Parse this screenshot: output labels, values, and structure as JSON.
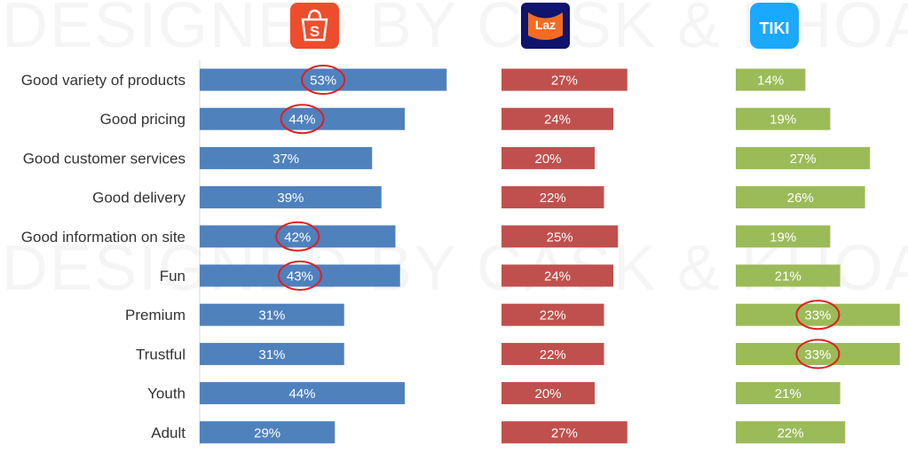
{
  "watermark": "DESIGNED BY CASK & KHOA",
  "logos": {
    "shopee": {
      "glyph": "S",
      "color": "#EE4D2D"
    },
    "lazada": {
      "glyph": "Laz",
      "color": "#0F146D",
      "accent": "#F36C21"
    },
    "tiki": {
      "glyph": "TIKI",
      "color": "#1BA8FF"
    }
  },
  "colors": {
    "shopee": "#4F81BD",
    "lazada": "#C0504D",
    "tiki": "#9BBB59",
    "highlight": "#E02020"
  },
  "chart_data": {
    "type": "bar",
    "orientation": "horizontal",
    "categories": [
      "Good variety of products",
      "Good pricing",
      "Good customer services",
      "Good delivery",
      "Good information on site",
      "Fun",
      "Premium",
      "Trustful",
      "Youth",
      "Adult"
    ],
    "series": [
      {
        "key": "shopee",
        "values": [
          53,
          44,
          37,
          39,
          42,
          43,
          31,
          31,
          44,
          29
        ],
        "labels": [
          "53%",
          "44%",
          "37%",
          "39%",
          "42%",
          "43%",
          "31%",
          "31%",
          "44%",
          "29%"
        ],
        "highlighted": [
          true,
          true,
          false,
          false,
          true,
          true,
          false,
          false,
          false,
          false
        ]
      },
      {
        "key": "lazada",
        "values": [
          27,
          24,
          20,
          22,
          25,
          24,
          22,
          22,
          20,
          27
        ],
        "labels": [
          "27%",
          "24%",
          "20%",
          "22%",
          "25%",
          "24%",
          "22%",
          "22%",
          "20%",
          "27%"
        ],
        "highlighted": [
          false,
          false,
          false,
          false,
          false,
          false,
          false,
          false,
          false,
          false
        ]
      },
      {
        "key": "tiki",
        "values": [
          14,
          19,
          27,
          26,
          19,
          21,
          33,
          33,
          21,
          22
        ],
        "labels": [
          "14%",
          "19%",
          "27%",
          "26%",
          "19%",
          "21%",
          "33%",
          "33%",
          "21%",
          "22%"
        ],
        "highlighted": [
          false,
          false,
          false,
          false,
          false,
          false,
          true,
          true,
          false,
          false
        ]
      }
    ],
    "grid": false,
    "legend": "logos-top"
  }
}
